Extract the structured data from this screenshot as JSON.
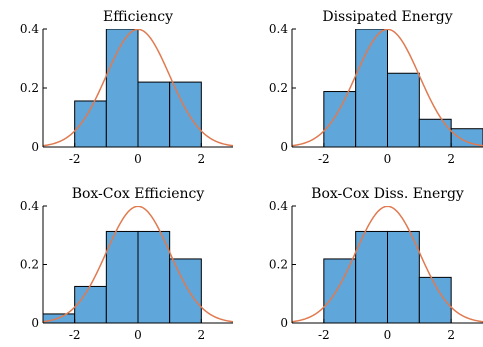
{
  "colors": {
    "bar_fill": "#5fa6db",
    "bar_edge": "#000000",
    "curve": "#e07a50",
    "axis": "#000000"
  },
  "chart_data": [
    {
      "type": "bar",
      "title": "Efficiency",
      "bin_edges": [
        -2,
        -1,
        0,
        1,
        2
      ],
      "values": [
        0.156,
        0.4,
        0.22,
        0.22
      ],
      "overlay": {
        "type": "normal-pdf",
        "mean": 0,
        "std": 1
      },
      "xlim": [
        -3,
        3
      ],
      "ylim": [
        0,
        0.4
      ],
      "xticks": [
        -2,
        0,
        2
      ],
      "yticks": [
        0,
        0.2,
        0.4
      ],
      "xtick_labels": [
        "-2",
        "0",
        "2"
      ],
      "ytick_labels": [
        "0",
        "0.2",
        "0.4"
      ]
    },
    {
      "type": "bar",
      "title": "Dissipated Energy",
      "bin_edges": [
        -2,
        -1,
        0,
        1,
        2,
        3
      ],
      "values": [
        0.188,
        0.4,
        0.25,
        0.094,
        0.062
      ],
      "overlay": {
        "type": "normal-pdf",
        "mean": 0,
        "std": 1
      },
      "xlim": [
        -3,
        3
      ],
      "ylim": [
        0,
        0.4
      ],
      "xticks": [
        -2,
        0,
        2
      ],
      "yticks": [
        0,
        0.2,
        0.4
      ],
      "xtick_labels": [
        "-2",
        "0",
        "2"
      ],
      "ytick_labels": [
        "0",
        "0.2",
        "0.4"
      ]
    },
    {
      "type": "bar",
      "title": "Box-Cox Efficiency",
      "bin_edges": [
        -3,
        -2,
        -1,
        0,
        1,
        2
      ],
      "values": [
        0.031,
        0.125,
        0.313,
        0.313,
        0.219
      ],
      "overlay": {
        "type": "normal-pdf",
        "mean": 0,
        "std": 1
      },
      "xlim": [
        -3,
        3
      ],
      "ylim": [
        0,
        0.4
      ],
      "xticks": [
        -2,
        0,
        2
      ],
      "yticks": [
        0,
        0.2,
        0.4
      ],
      "xtick_labels": [
        "-2",
        "0",
        "2"
      ],
      "ytick_labels": [
        "0",
        "0.2",
        "0.4"
      ]
    },
    {
      "type": "bar",
      "title": "Box-Cox Diss. Energy",
      "bin_edges": [
        -2,
        -1,
        0,
        1,
        2
      ],
      "values": [
        0.219,
        0.313,
        0.313,
        0.156
      ],
      "overlay": {
        "type": "normal-pdf",
        "mean": 0,
        "std": 1
      },
      "xlim": [
        -3,
        3
      ],
      "ylim": [
        0,
        0.4
      ],
      "xticks": [
        -2,
        0,
        2
      ],
      "yticks": [
        0,
        0.2,
        0.4
      ],
      "xtick_labels": [
        "-2",
        "0",
        "2"
      ],
      "ytick_labels": [
        "0",
        "0.2",
        "0.4"
      ]
    }
  ]
}
